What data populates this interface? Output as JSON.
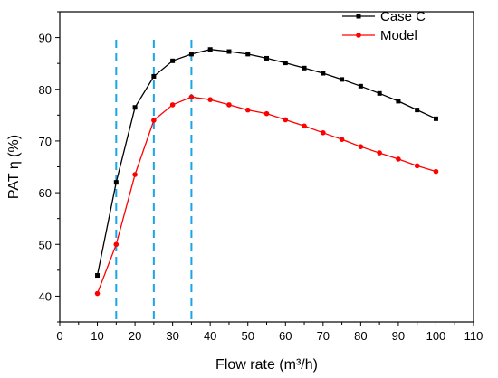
{
  "chart_data": {
    "type": "line",
    "title": "",
    "xlabel": "Flow rate (m³/h)",
    "ylabel": "PAT η (%)",
    "xlim": [
      0,
      110
    ],
    "ylim": [
      35,
      95
    ],
    "xticks": [
      0,
      10,
      20,
      30,
      40,
      50,
      60,
      70,
      80,
      90,
      100,
      110
    ],
    "yticks": [
      40,
      50,
      60,
      70,
      80,
      90
    ],
    "grid": false,
    "legend_position": "top-right",
    "series": [
      {
        "name": "Case C",
        "color": "#000000",
        "marker": "square",
        "x": [
          10,
          15,
          20,
          25,
          30,
          35,
          40,
          45,
          50,
          55,
          60,
          65,
          70,
          75,
          80,
          85,
          90,
          95,
          100
        ],
        "y": [
          44,
          62,
          76.5,
          82.5,
          85.5,
          86.8,
          87.7,
          87.3,
          86.8,
          86,
          85.1,
          84.1,
          83.1,
          81.9,
          80.6,
          79.2,
          77.7,
          76,
          74.3
        ]
      },
      {
        "name": "Model",
        "color": "#ff0000",
        "marker": "circle",
        "x": [
          10,
          15,
          20,
          25,
          30,
          35,
          40,
          45,
          50,
          55,
          60,
          65,
          70,
          75,
          80,
          85,
          90,
          95,
          100
        ],
        "y": [
          40.5,
          50,
          63.5,
          74,
          77,
          78.5,
          78,
          77,
          76,
          75.3,
          74.1,
          72.9,
          71.6,
          70.3,
          68.9,
          67.7,
          66.5,
          65.2,
          64.1
        ]
      }
    ],
    "reference_lines": {
      "orientation": "vertical",
      "style": "dashed",
      "color": "#19a5e6",
      "x": [
        15,
        25,
        35
      ]
    }
  }
}
